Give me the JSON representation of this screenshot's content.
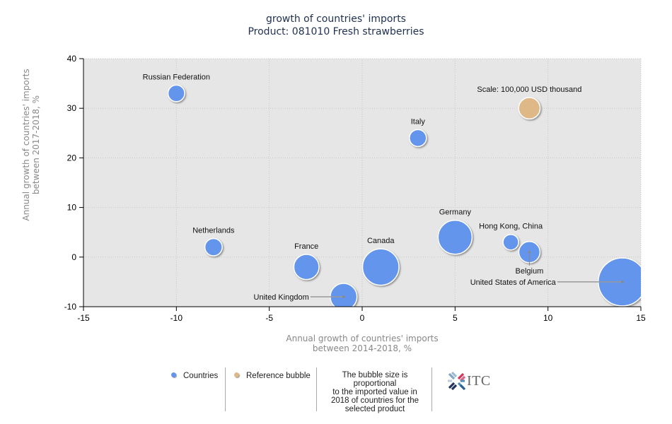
{
  "chart_data": {
    "type": "bubble",
    "title": "growth of countries' imports",
    "subtitle": "Product: 081010 Fresh strawberries",
    "xlabel": [
      "Annual growth of countries' imports",
      "between 2014-2018, %"
    ],
    "ylabel": [
      "Annual growth of countries' imports",
      "between 2017-2018, %"
    ],
    "xlim": [
      -15,
      15
    ],
    "ylim": [
      -10,
      40
    ],
    "xticks": [
      -15,
      -10,
      -5,
      0,
      5,
      10,
      15
    ],
    "yticks": [
      -10,
      0,
      10,
      20,
      30,
      40
    ],
    "grid": true,
    "colors": {
      "countries": "#6495ed",
      "reference": "#deb887",
      "plot_bg": "#e6e6e6"
    },
    "series": [
      {
        "name": "Countries",
        "points": [
          {
            "label": "Russian Federation",
            "x": -10,
            "y": 33,
            "size": 0.24
          },
          {
            "label": "Italy",
            "x": 3,
            "y": 24,
            "size": 0.25
          },
          {
            "label": "Netherlands",
            "x": -8,
            "y": 2,
            "size": 0.26
          },
          {
            "label": "France",
            "x": -3,
            "y": -2,
            "size": 0.55
          },
          {
            "label": "Canada",
            "x": 1,
            "y": -2,
            "size": 1.15
          },
          {
            "label": "United Kingdom",
            "x": -1,
            "y": -8,
            "size": 0.62,
            "leader": "left"
          },
          {
            "label": "Germany",
            "x": 5,
            "y": 4,
            "size": 1.0
          },
          {
            "label": "Hong Kong, China",
            "x": 8,
            "y": 3,
            "size": 0.21
          },
          {
            "label": "Belgium",
            "x": 9,
            "y": 1,
            "size": 0.39,
            "leader": "below"
          },
          {
            "label": "United States of America",
            "x": 14,
            "y": -5,
            "size": 2.0,
            "leader": "left"
          }
        ]
      },
      {
        "name": "Reference bubble",
        "points": [
          {
            "label": "Scale: 100,000 USD thousand",
            "x": 9,
            "y": 30,
            "size": 0.4
          }
        ]
      }
    ],
    "legend": {
      "position": "bottom",
      "items": [
        "Countries",
        "Reference bubble"
      ],
      "note": [
        "The bubble size is proportional",
        "to the imported value in",
        "2018 of countries for the",
        "selected product"
      ]
    }
  },
  "logo": {
    "text": "ITC"
  }
}
